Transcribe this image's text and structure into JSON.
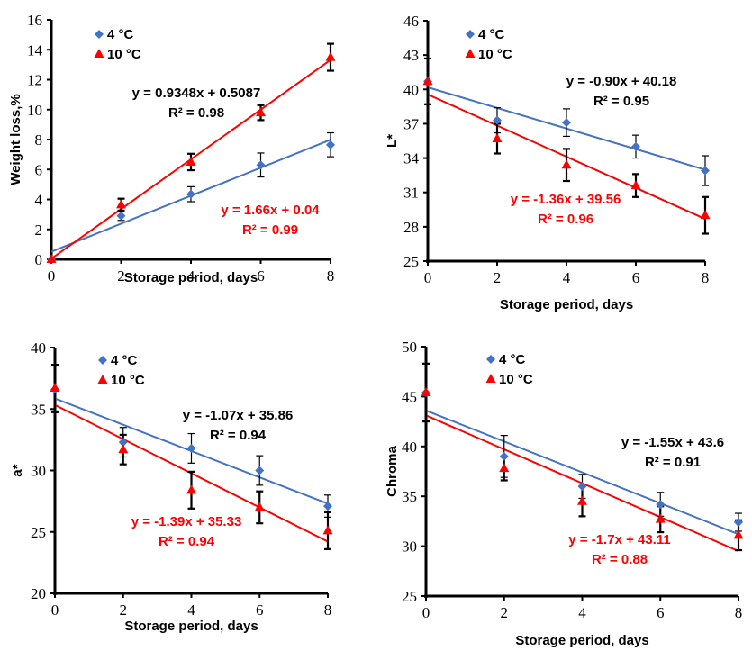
{
  "chart_data": [
    {
      "type": "scatter",
      "title": "",
      "xlabel": "Storage period, days",
      "ylabel": "Weight loss,%",
      "xlim": [
        0,
        8
      ],
      "ylim": [
        0,
        16
      ],
      "x_ticks": [
        0,
        2,
        4,
        6,
        8
      ],
      "y_ticks": [
        0,
        2,
        4,
        6,
        8,
        10,
        12,
        14,
        16
      ],
      "grid": false,
      "legend_position": "top-left",
      "x": [
        0,
        2,
        4,
        6,
        8
      ],
      "series": [
        {
          "name": "4 °C",
          "marker": "diamond",
          "color": "#4472C4",
          "values": [
            0,
            2.9,
            4.35,
            6.3,
            7.65
          ],
          "error": [
            0,
            0.3,
            0.5,
            0.8,
            0.8
          ],
          "trendline": {
            "slope": 0.9348,
            "intercept": 0.5087,
            "equation": "y = 0.9348x + 0.5087",
            "r2_label": "R² = 0.98",
            "label_color": "#000000"
          }
        },
        {
          "name": "10 °C",
          "marker": "triangle",
          "color": "#FF0000",
          "values": [
            0,
            3.65,
            6.5,
            9.8,
            13.5
          ],
          "error": [
            0,
            0.4,
            0.55,
            0.5,
            0.9
          ],
          "trendline": {
            "slope": 1.66,
            "intercept": 0.04,
            "equation": "y = 1.66x + 0.04",
            "r2_label": "R² = 0.99",
            "label_color": "#FF0000"
          }
        }
      ]
    },
    {
      "type": "scatter",
      "title": "",
      "xlabel": "Storage period, days",
      "ylabel": "L*",
      "xlim": [
        0,
        8
      ],
      "ylim": [
        25,
        46
      ],
      "x_ticks": [
        0,
        2,
        4,
        6,
        8
      ],
      "y_ticks": [
        25,
        28,
        31,
        34,
        37,
        40,
        43,
        46
      ],
      "grid": false,
      "legend_position": "top-left",
      "x": [
        0,
        2,
        4,
        6,
        8
      ],
      "series": [
        {
          "name": "4 °C",
          "marker": "diamond",
          "color": "#4472C4",
          "values": [
            40.7,
            37.3,
            37.1,
            35.0,
            32.9
          ],
          "error": [
            2.0,
            1.1,
            1.2,
            1.0,
            1.3
          ],
          "trendline": {
            "slope": -0.9,
            "intercept": 40.18,
            "equation": "y = -0.90x + 40.18",
            "r2_label": "R² = 0.95",
            "label_color": "#000000"
          }
        },
        {
          "name": "10 °C",
          "marker": "triangle",
          "color": "#FF0000",
          "values": [
            40.7,
            35.7,
            33.4,
            31.6,
            29.0
          ],
          "error": [
            2.0,
            1.3,
            1.4,
            1.0,
            1.6
          ],
          "trendline": {
            "slope": -1.36,
            "intercept": 39.56,
            "equation": "y = -1.36x + 39.56",
            "r2_label": "R² = 0.96",
            "label_color": "#FF0000"
          }
        }
      ]
    },
    {
      "type": "scatter",
      "title": "",
      "xlabel": "Storage period, days",
      "ylabel": "a*",
      "xlim": [
        0,
        8
      ],
      "ylim": [
        20,
        40
      ],
      "x_ticks": [
        0,
        2,
        4,
        6,
        8
      ],
      "y_ticks": [
        20,
        25,
        30,
        35,
        40
      ],
      "grid": false,
      "legend_position": "top-left",
      "x": [
        0,
        2,
        4,
        6,
        8
      ],
      "series": [
        {
          "name": "4 °C",
          "marker": "diamond",
          "color": "#4472C4",
          "values": [
            36.6,
            32.3,
            31.8,
            30.0,
            27.1
          ],
          "error": [
            1.9,
            1.2,
            1.2,
            1.2,
            0.9
          ],
          "trendline": {
            "slope": -1.07,
            "intercept": 35.86,
            "equation": "y = -1.07x + 35.86",
            "r2_label": "R² = 0.94",
            "label_color": "#000000"
          }
        },
        {
          "name": "10 °C",
          "marker": "triangle",
          "color": "#FF0000",
          "values": [
            36.7,
            31.7,
            28.4,
            27.0,
            25.1
          ],
          "error": [
            1.9,
            1.2,
            1.5,
            1.3,
            1.5
          ],
          "trendline": {
            "slope": -1.39,
            "intercept": 35.33,
            "equation": "y = -1.39x + 35.33",
            "r2_label": "R² = 0.94",
            "label_color": "#FF0000"
          }
        }
      ]
    },
    {
      "type": "scatter",
      "title": "",
      "xlabel": "Storage period, days",
      "ylabel": "Chroma",
      "xlim": [
        0,
        8
      ],
      "ylim": [
        25,
        50
      ],
      "x_ticks": [
        0,
        2,
        4,
        6,
        8
      ],
      "y_ticks": [
        25,
        30,
        35,
        40,
        45,
        50
      ],
      "grid": false,
      "legend_position": "top-left",
      "x": [
        0,
        2,
        4,
        6,
        8
      ],
      "series": [
        {
          "name": "4 °C",
          "marker": "diamond",
          "color": "#4472C4",
          "values": [
            45.4,
            39.0,
            36.0,
            34.2,
            32.4
          ],
          "error": [
            2.9,
            2.1,
            1.2,
            1.2,
            0.9
          ],
          "trendline": {
            "slope": -1.55,
            "intercept": 43.6,
            "equation": "y = -1.55x + 43.6",
            "r2_label": "R² = 0.91",
            "label_color": "#000000"
          }
        },
        {
          "name": "10 °C",
          "marker": "triangle",
          "color": "#FF0000",
          "values": [
            45.4,
            37.8,
            34.5,
            32.7,
            31.1
          ],
          "error": [
            2.9,
            1.2,
            1.5,
            1.3,
            1.5
          ],
          "trendline": {
            "slope": -1.7,
            "intercept": 43.11,
            "equation": "y = -1.7x + 43.11",
            "r2_label": "R² = 0.88",
            "label_color": "#FF0000"
          }
        }
      ]
    }
  ]
}
